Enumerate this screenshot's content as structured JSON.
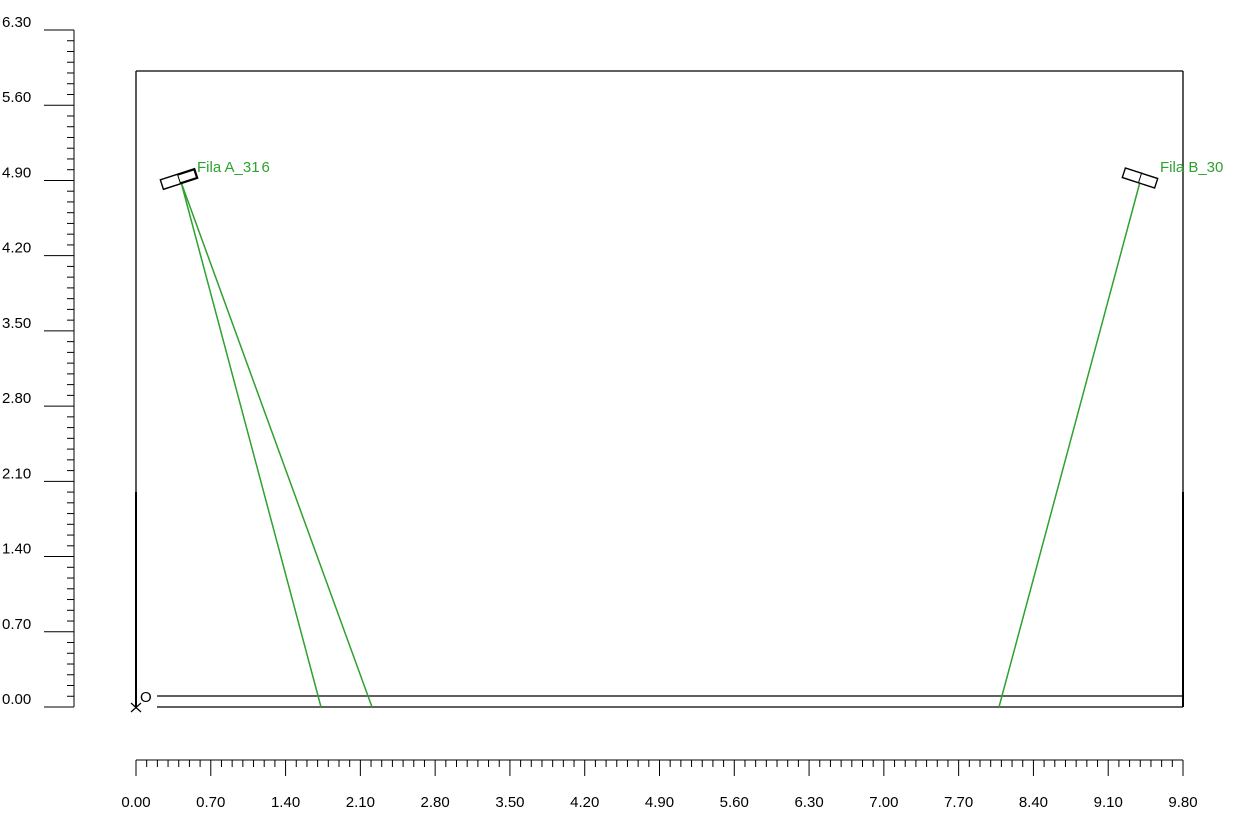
{
  "colors": {
    "axis": "#000000",
    "beam": "#2ea12e",
    "label": "#2ea12e",
    "frame": "#000000"
  },
  "axes": {
    "y_ticks": [
      "0.00",
      "0.70",
      "1.40",
      "2.10",
      "2.80",
      "3.50",
      "4.20",
      "4.90",
      "5.60",
      "6.30"
    ],
    "x_ticks": [
      "0.00",
      "0.70",
      "1.40",
      "2.10",
      "2.80",
      "3.50",
      "4.20",
      "4.90",
      "5.60",
      "6.30",
      "7.00",
      "7.70",
      "8.40",
      "9.10",
      "9.80"
    ],
    "y_range": [
      0,
      6.3
    ],
    "x_range": [
      0,
      9.8
    ]
  },
  "luminaires": [
    {
      "label": "Fila A_31",
      "suffix": "6"
    },
    {
      "label": "Fila B_30",
      "suffix": ""
    }
  ],
  "origin_marker": "O"
}
